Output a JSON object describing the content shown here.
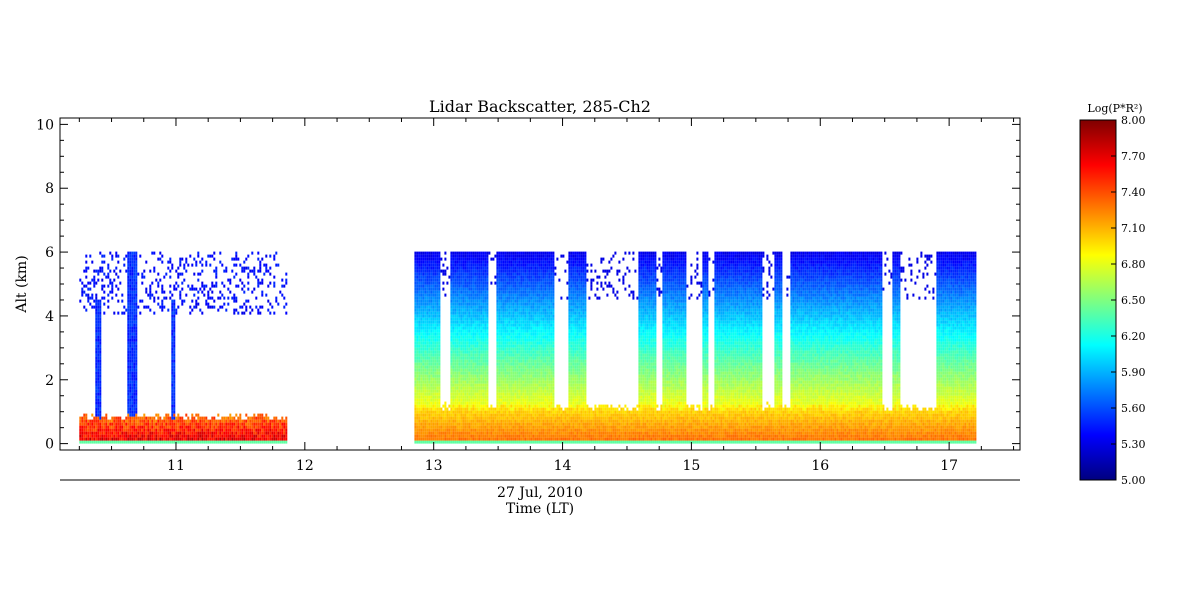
{
  "chart_data": {
    "type": "heatmap",
    "title": "Lidar Backscatter, 285-Ch2",
    "ylabel": "Alt (km)",
    "xlabel_date": "27 Jul, 2010",
    "xlabel": "Time (LT)",
    "xlim": [
      10.1,
      17.55
    ],
    "ylim": [
      -0.2,
      10.2
    ],
    "x_ticks": [
      11,
      12,
      13,
      14,
      15,
      16,
      17
    ],
    "y_ticks": [
      0,
      2,
      4,
      6,
      8,
      10
    ],
    "colorbar": {
      "label": "Log(P*R²)",
      "min": 5.0,
      "max": 8.0,
      "ticks": [
        "5.00",
        "5.30",
        "5.60",
        "5.90",
        "6.20",
        "6.50",
        "6.80",
        "7.10",
        "7.40",
        "7.70",
        "8.00"
      ],
      "colormap": "jet"
    },
    "segments": [
      {
        "t_start": 10.25,
        "t_end": 11.85,
        "alt_max": 6.0,
        "boundary_layer_top": 0.8,
        "columns": [
          {
            "t_start": 10.36,
            "t_end": 10.41,
            "top": 4.5
          },
          {
            "t_start": 10.62,
            "t_end": 10.69,
            "top": 6.0
          },
          {
            "t_start": 10.96,
            "t_end": 10.99,
            "top": 4.5
          }
        ]
      },
      {
        "t_start": 12.85,
        "t_end": 17.2,
        "alt_max": 6.0,
        "boundary_layer_top": 1.1,
        "gaps": [
          {
            "t_start": 13.04,
            "t_end": 13.12
          },
          {
            "t_start": 13.42,
            "t_end": 13.48
          },
          {
            "t_start": 13.93,
            "t_end": 14.04
          },
          {
            "t_start": 14.18,
            "t_end": 14.58
          },
          {
            "t_start": 14.72,
            "t_end": 14.77
          },
          {
            "t_start": 14.95,
            "t_end": 15.08
          },
          {
            "t_start": 15.13,
            "t_end": 15.17
          },
          {
            "t_start": 15.55,
            "t_end": 15.64
          },
          {
            "t_start": 15.7,
            "t_end": 15.76
          },
          {
            "t_start": 16.48,
            "t_end": 16.55
          },
          {
            "t_start": 16.62,
            "t_end": 16.9
          }
        ]
      }
    ]
  }
}
